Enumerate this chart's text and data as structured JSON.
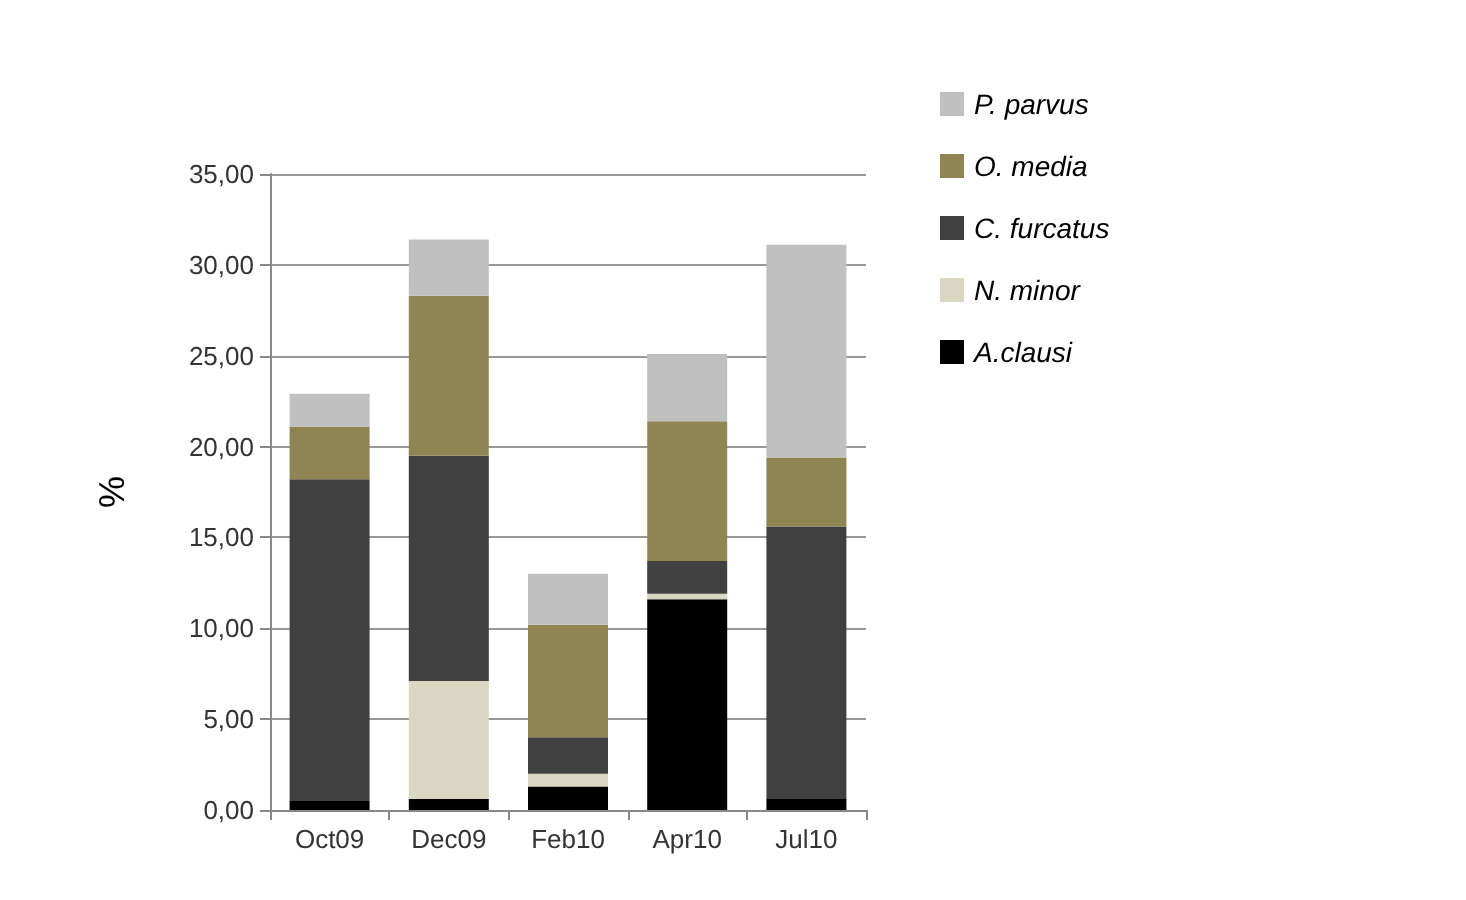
{
  "chart_data": {
    "type": "bar",
    "stacked": true,
    "ylabel": "%",
    "categories": [
      "Oct09",
      "Dec09",
      "Feb10",
      "Apr10",
      "Jul10"
    ],
    "series": [
      {
        "name": "A.clausi",
        "color": "#000000",
        "values": [
          0.5,
          0.6,
          1.3,
          11.6,
          0.6
        ]
      },
      {
        "name": "N. minor",
        "color": "#d9d6c1",
        "values": [
          0,
          6.5,
          0.7,
          0.3,
          0
        ]
      },
      {
        "name": "C. furcatus",
        "color": "#404040",
        "values": [
          17.7,
          12.4,
          2.0,
          1.8,
          15.0
        ]
      },
      {
        "name": "O. media",
        "color": "#8f8552",
        "values": [
          2.9,
          8.8,
          6.2,
          7.7,
          3.8
        ]
      },
      {
        "name": "P. parvus",
        "color": "#c0c0c0",
        "values": [
          1.8,
          3.1,
          2.8,
          3.7,
          11.7
        ]
      }
    ],
    "ylim": [
      0,
      35
    ],
    "yticks": [
      {
        "value": 0,
        "label": "0,00"
      },
      {
        "value": 5,
        "label": "5,00"
      },
      {
        "value": 10,
        "label": "10,00"
      },
      {
        "value": 15,
        "label": "15,00"
      },
      {
        "value": 20,
        "label": "20,00"
      },
      {
        "value": 25,
        "label": "25,00"
      },
      {
        "value": 30,
        "label": "30,00"
      },
      {
        "value": 35,
        "label": "35,00"
      }
    ],
    "grid": "y",
    "legend": "right"
  }
}
